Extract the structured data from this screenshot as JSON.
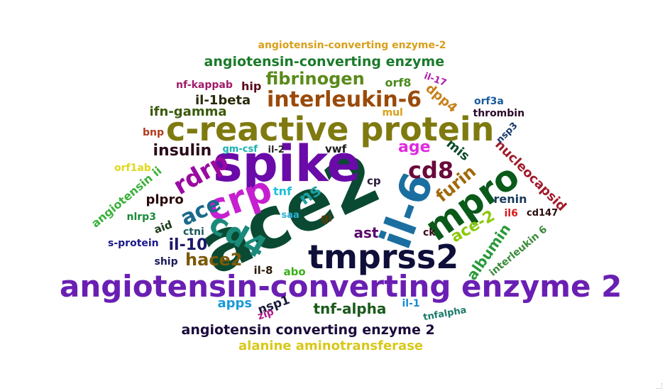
{
  "words": [
    {
      "text": "ace2",
      "color": "#0a4a32"
    },
    {
      "text": "spike",
      "color": "#6a0aa8"
    },
    {
      "text": "c-reactive protein",
      "color": "#7f7a10"
    },
    {
      "text": "angiotensin-converting enzyme 2",
      "color": "#6a1fb3"
    },
    {
      "text": "tmprss2",
      "color": "#0f0f3a"
    },
    {
      "text": "crp",
      "color": "#c61fd0"
    },
    {
      "text": "il-6",
      "color": "#1b6fa0"
    },
    {
      "text": "mpro",
      "color": "#0a5a1a"
    },
    {
      "text": "cd8",
      "color": "#6a0a3a"
    },
    {
      "text": "interleukin-6",
      "color": "#9a4a0a"
    },
    {
      "text": "cd4",
      "color": "#1a8a7a"
    },
    {
      "text": "rdrp",
      "color": "#9a0aa0"
    },
    {
      "text": "fibrinogen",
      "color": "#5a8a1a"
    },
    {
      "text": "angiotensin-converting enzyme",
      "color": "#1a7a2a"
    },
    {
      "text": "angiotensin converting enzyme 2",
      "color": "#1a0a3a"
    },
    {
      "text": "tnf-alpha",
      "color": "#1a5a1a"
    },
    {
      "text": "hace2",
      "color": "#7a5a0a"
    },
    {
      "text": "ace",
      "color": "#1a6a8a"
    },
    {
      "text": "furin",
      "color": "#a06a0a"
    },
    {
      "text": "ace-2",
      "color": "#8ac80a"
    },
    {
      "text": "insulin",
      "color": "#2a0a1a"
    },
    {
      "text": "ifn-gamma",
      "color": "#3a5a0a"
    },
    {
      "text": "il-1beta",
      "color": "#2a2a0a"
    },
    {
      "text": "albumin",
      "color": "#2a9a3a"
    },
    {
      "text": "nucleocapsid",
      "color": "#a01a2a"
    },
    {
      "text": "age",
      "color": "#e02ae0"
    },
    {
      "text": "ns",
      "color": "#1aa0a0"
    },
    {
      "text": "il-10",
      "color": "#1a1a6a"
    },
    {
      "text": "ast",
      "color": "#5a0a6a"
    },
    {
      "text": "plpro",
      "color": "#2a0a0a"
    },
    {
      "text": "angiotensin ii",
      "color": "#3ab03a"
    },
    {
      "text": "alanine aminotransferase",
      "color": "#d8c81a"
    },
    {
      "text": "orf8",
      "color": "#4a8a1a"
    },
    {
      "text": "dpp4",
      "color": "#c8801a"
    },
    {
      "text": "mis",
      "color": "#0a4a2a"
    },
    {
      "text": "interleukin 6",
      "color": "#3a8a3a"
    },
    {
      "text": "apps",
      "color": "#1a9ad8"
    },
    {
      "text": "nsp1",
      "color": "#1a1a3a"
    },
    {
      "text": "hip",
      "color": "#5a0a1a"
    },
    {
      "text": "nf-kappab",
      "color": "#a01a6a"
    },
    {
      "text": "angiotensin-converting enzyme-2",
      "color": "#d8a01a"
    },
    {
      "text": "il-17",
      "color": "#b01ab0"
    },
    {
      "text": "orf3a",
      "color": "#1a5a9a"
    },
    {
      "text": "thrombin",
      "color": "#2a0a2a"
    },
    {
      "text": "mul",
      "color": "#d8a01a"
    },
    {
      "text": "nsp3",
      "color": "#1a3a6a"
    },
    {
      "text": "bnp",
      "color": "#b03a1a"
    },
    {
      "text": "gm-csf",
      "color": "#1ab0b0"
    },
    {
      "text": "il-2",
      "color": "#2a2a2a"
    },
    {
      "text": "vwf",
      "color": "#1a1a1a"
    },
    {
      "text": "orf1ab",
      "color": "#e0d81a"
    },
    {
      "text": "tnf",
      "color": "#1ac0d8"
    },
    {
      "text": "cp",
      "color": "#2a1a3a"
    },
    {
      "text": "renin",
      "color": "#1a3a5a"
    },
    {
      "text": "il6",
      "color": "#d81a1a"
    },
    {
      "text": "cd147",
      "color": "#2a0a0a"
    },
    {
      "text": "nlrp3",
      "color": "#1a8a3a"
    },
    {
      "text": "aid",
      "color": "#1a3a1a"
    },
    {
      "text": "ctni",
      "color": "#1a5a5a"
    },
    {
      "text": "saa",
      "color": "#2ab0d8"
    },
    {
      "text": "gi",
      "color": "#5a3a0a"
    },
    {
      "text": "ck",
      "color": "#3a0a1a"
    },
    {
      "text": "s-protein",
      "color": "#1a1a8a"
    },
    {
      "text": "ship",
      "color": "#1a1a5a"
    },
    {
      "text": "il-8",
      "color": "#2a1a0a"
    },
    {
      "text": "abo",
      "color": "#3ab01a"
    },
    {
      "text": "zip",
      "color": "#b01a8a"
    },
    {
      "text": "il-1",
      "color": "#1a8ad8"
    },
    {
      "text": "tnfalpha",
      "color": "#1a7a6a"
    }
  ]
}
